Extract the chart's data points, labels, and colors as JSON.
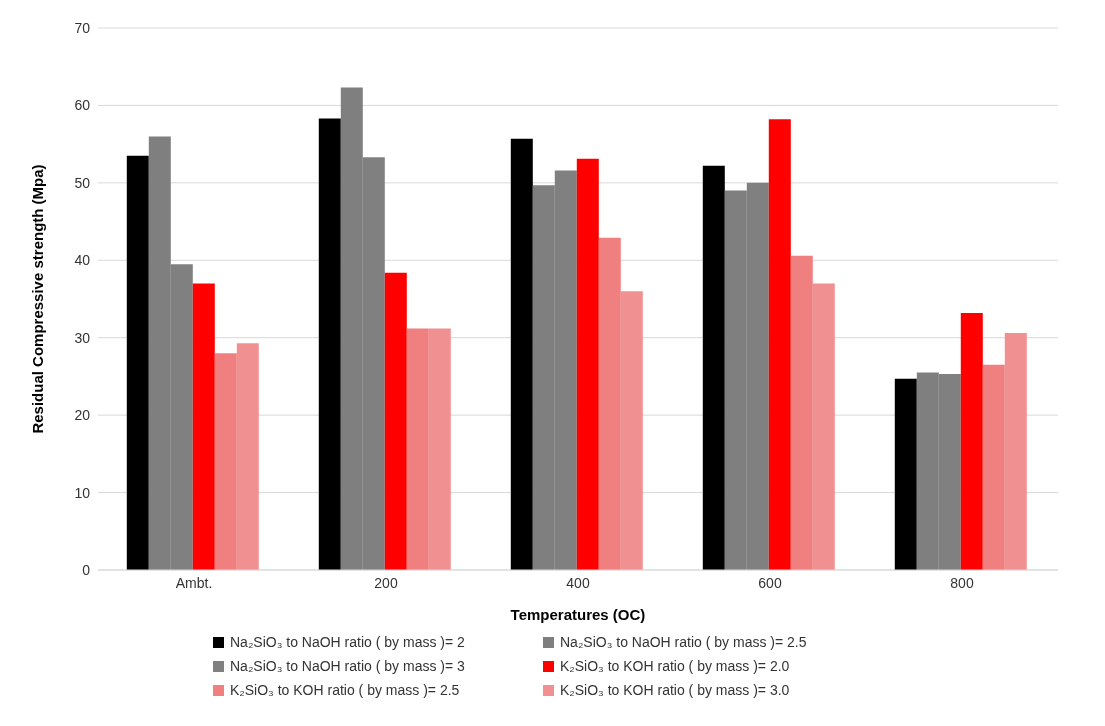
{
  "chart_data": {
    "type": "bar",
    "xlabel": "Temperatures (OC)",
    "ylabel": "Residual Compressive strength (Mpa)",
    "categories": [
      "Ambt.",
      "200",
      "400",
      "600",
      "800"
    ],
    "series": [
      {
        "name": "Na₂SiO₃ to NaOH ratio ( by mass )= 2",
        "color": "#000000",
        "values": [
          53.5,
          58.3,
          55.7,
          52.2,
          24.7
        ]
      },
      {
        "name": "Na₂SiO₃ to NaOH ratio ( by mass )= 2.5",
        "color": "#7f7f7f",
        "values": [
          56,
          62.3,
          49.7,
          49,
          25.5
        ]
      },
      {
        "name": "Na₂SiO₃ to NaOH ratio ( by mass )= 3",
        "color": "#808080",
        "values": [
          39.5,
          53.3,
          51.6,
          50,
          25.3
        ]
      },
      {
        "name": "K₂SiO₃ to KOH ratio ( by mass )= 2.0",
        "color": "#ff0000",
        "values": [
          37,
          38.4,
          53.1,
          58.2,
          33.2
        ]
      },
      {
        "name": "K₂SiO₃ to KOH ratio ( by mass )= 2.5",
        "color": "#f08080",
        "values": [
          28,
          31.2,
          42.9,
          40.6,
          26.5
        ]
      },
      {
        "name": "K₂SiO₃ to KOH ratio ( by mass )= 3.0",
        "color": "#f09090",
        "values": [
          29.3,
          31.2,
          36,
          37,
          30.6
        ]
      }
    ],
    "ylim": [
      0,
      70
    ],
    "yticks": [
      0,
      10,
      20,
      30,
      40,
      50,
      60,
      70
    ],
    "grid": "y",
    "legend": "bottom"
  }
}
